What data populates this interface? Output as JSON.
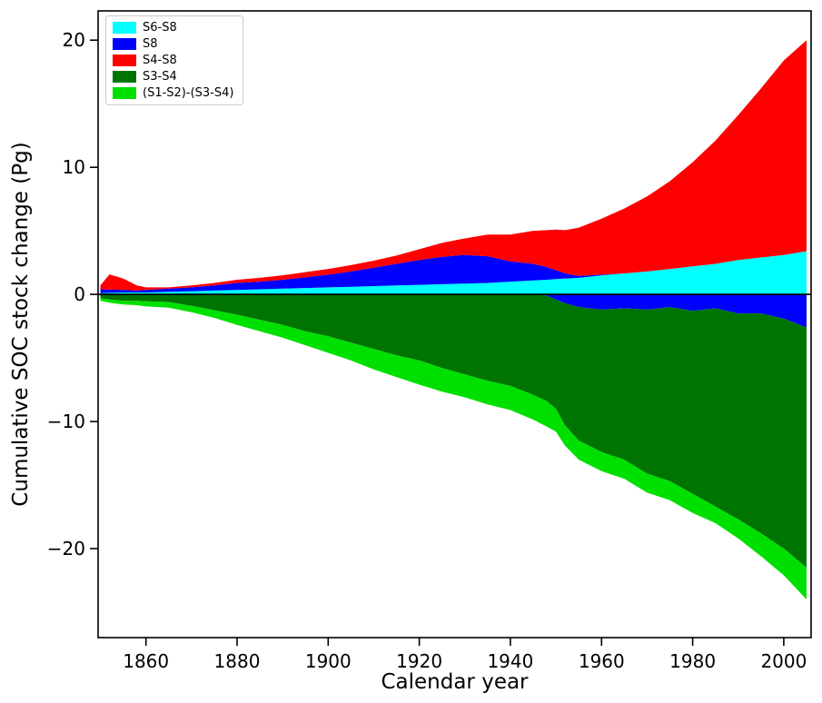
{
  "chart_data": {
    "type": "area",
    "title": "",
    "xlabel": "Calendar year",
    "ylabel": "Cumulative SOC stock change (Pg)",
    "xlim": [
      1849.5,
      2006
    ],
    "ylim": [
      -27,
      22.3
    ],
    "xticks": [
      1860,
      1880,
      1900,
      1920,
      1940,
      1960,
      1980,
      2000
    ],
    "yticks": [
      -20,
      -10,
      0,
      10,
      20
    ],
    "grid": false,
    "zero_line": true,
    "values_are": "stacked band thickness in Pg, stacked outward from zero on the given side",
    "x": [
      1850,
      1852,
      1855,
      1858,
      1860,
      1865,
      1870,
      1875,
      1880,
      1885,
      1890,
      1895,
      1900,
      1905,
      1910,
      1915,
      1920,
      1925,
      1930,
      1935,
      1940,
      1945,
      1948,
      1950,
      1952,
      1955,
      1960,
      1965,
      1970,
      1975,
      1980,
      1985,
      1990,
      1995,
      2000,
      2005
    ],
    "bands": [
      {
        "name": "S6-S8",
        "legend": "S6-S8",
        "side": "positive",
        "color": "#00ffff",
        "values": [
          0.1,
          0.12,
          0.15,
          0.15,
          0.15,
          0.2,
          0.25,
          0.3,
          0.35,
          0.4,
          0.45,
          0.5,
          0.55,
          0.6,
          0.65,
          0.7,
          0.75,
          0.8,
          0.85,
          0.9,
          1.0,
          1.1,
          1.15,
          1.2,
          1.25,
          1.3,
          1.5,
          1.65,
          1.8,
          2.0,
          2.2,
          2.4,
          2.7,
          2.9,
          3.1,
          3.4
        ]
      },
      {
        "name": "S8-above-zero",
        "legend": "S8",
        "side": "positive",
        "color": "#0000ff",
        "values": [
          0.3,
          0.25,
          0.2,
          0.15,
          0.2,
          0.25,
          0.3,
          0.4,
          0.55,
          0.6,
          0.7,
          0.85,
          1.0,
          1.2,
          1.45,
          1.7,
          1.95,
          2.15,
          2.25,
          2.1,
          1.6,
          1.3,
          1.0,
          0.7,
          0.4,
          0.15,
          0.05,
          0,
          0,
          0,
          0,
          0,
          0,
          0,
          0,
          0
        ]
      },
      {
        "name": "S4-S8",
        "legend": "S4-S8",
        "side": "positive",
        "color": "#ff0000",
        "values": [
          0.3,
          1.2,
          0.9,
          0.4,
          0.2,
          0.1,
          0.15,
          0.2,
          0.25,
          0.3,
          0.35,
          0.4,
          0.45,
          0.5,
          0.55,
          0.65,
          0.85,
          1.1,
          1.3,
          1.7,
          2.1,
          2.6,
          2.9,
          3.2,
          3.4,
          3.8,
          4.4,
          5.1,
          5.9,
          6.9,
          8.2,
          9.7,
          11.4,
          13.3,
          15.3,
          16.6
        ]
      },
      {
        "name": "S8-below-zero",
        "legend": "S8",
        "side": "negative",
        "color": "#0000ff",
        "values": [
          0,
          0,
          0,
          0,
          0,
          0,
          0,
          0,
          0,
          0,
          0,
          0,
          0,
          0,
          0,
          0,
          0,
          0,
          0,
          0,
          0,
          0,
          0.1,
          0.4,
          0.7,
          1.0,
          1.2,
          1.1,
          1.2,
          1.0,
          1.3,
          1.1,
          1.5,
          1.5,
          1.9,
          2.6
        ]
      },
      {
        "name": "S3-S4",
        "legend": "S3-S4",
        "side": "negative",
        "color": "#007400",
        "values": [
          0.3,
          0.4,
          0.5,
          0.5,
          0.55,
          0.6,
          0.9,
          1.25,
          1.6,
          2.0,
          2.4,
          2.9,
          3.3,
          3.8,
          4.3,
          4.8,
          5.2,
          5.8,
          6.3,
          6.8,
          7.2,
          7.9,
          8.3,
          8.6,
          9.6,
          10.5,
          11.2,
          11.9,
          12.9,
          13.7,
          14.4,
          15.6,
          16.2,
          17.3,
          18.1,
          18.9
        ]
      },
      {
        "name": "(S1-S2)-(S3-S4)",
        "legend": "(S1-S2)-(S3-S4)",
        "side": "negative",
        "color": "#00e000",
        "values": [
          0.2,
          0.25,
          0.3,
          0.35,
          0.4,
          0.45,
          0.5,
          0.6,
          0.8,
          0.9,
          1.0,
          1.1,
          1.3,
          1.4,
          1.6,
          1.7,
          1.9,
          1.85,
          1.8,
          1.85,
          1.9,
          1.95,
          2.0,
          1.8,
          1.6,
          1.5,
          1.5,
          1.5,
          1.5,
          1.5,
          1.5,
          1.3,
          1.5,
          1.8,
          2.1,
          2.5
        ]
      }
    ],
    "legend": {
      "position": "upper left",
      "entries": [
        {
          "label": "S6-S8",
          "color": "#00ffff"
        },
        {
          "label": "S8",
          "color": "#0000ff"
        },
        {
          "label": "S4-S8",
          "color": "#ff0000"
        },
        {
          "label": "S3-S4",
          "color": "#007400"
        },
        {
          "label": "(S1-S2)-(S3-S4)",
          "color": "#00e000"
        }
      ]
    },
    "colors": {
      "axis": "#000000",
      "background": "#ffffff"
    }
  }
}
